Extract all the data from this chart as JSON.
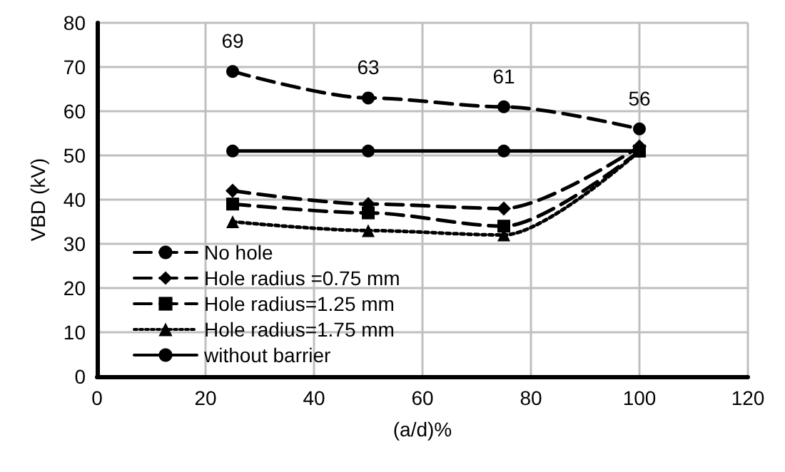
{
  "chart_data": {
    "type": "line",
    "xlabel": "(a/d)%",
    "ylabel": "VBD (kV)",
    "x": [
      25,
      50,
      75,
      100
    ],
    "series": [
      {
        "name": "No hole",
        "color": "#000000",
        "values": [
          69,
          63,
          61,
          56
        ],
        "marker": "circle",
        "line_style": "dashed",
        "value_labels": [
          "69",
          "63",
          "61",
          "56"
        ]
      },
      {
        "name": "Hole radius =0.75 mm",
        "color": "#000000",
        "values": [
          42,
          39,
          38,
          52
        ],
        "marker": "diamond",
        "line_style": "dashed"
      },
      {
        "name": "Hole radius=1.25 mm",
        "color": "#000000",
        "values": [
          39,
          37,
          34,
          51
        ],
        "marker": "square",
        "line_style": "dashed"
      },
      {
        "name": "Hole radius=1.75 mm",
        "color": "#000000",
        "values": [
          35,
          33,
          32,
          51
        ],
        "marker": "triangle",
        "line_style": "dotted"
      },
      {
        "name": "without barrier",
        "color": "#000000",
        "values": [
          51,
          51,
          51,
          51
        ],
        "marker": "circle",
        "line_style": "solid"
      }
    ],
    "xlim": [
      0,
      120
    ],
    "xticks": [
      0,
      20,
      40,
      60,
      80,
      100,
      120
    ],
    "ylim": [
      0,
      80
    ],
    "yticks": [
      0,
      10,
      20,
      30,
      40,
      50,
      60,
      70,
      80
    ],
    "grid": true,
    "legend": "bottom left"
  }
}
